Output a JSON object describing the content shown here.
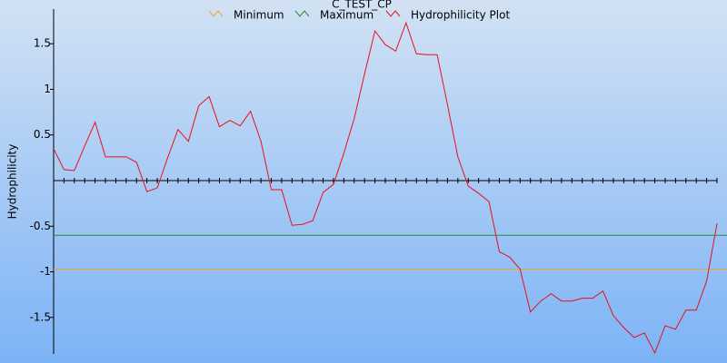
{
  "chart_data": {
    "type": "line",
    "title": "C_TEST_CP",
    "y_label": "Hydrophilicity",
    "x": [
      0,
      1,
      2,
      3,
      4,
      5,
      6,
      7,
      8,
      9,
      10,
      11,
      12,
      13,
      14,
      15,
      16,
      17,
      18,
      19,
      20,
      21,
      22,
      23,
      24,
      25,
      26,
      27,
      28,
      29,
      30,
      31,
      32,
      33,
      34,
      35,
      36,
      37,
      38,
      39,
      40,
      41,
      42,
      43,
      44,
      45,
      46,
      47,
      48,
      49,
      50,
      51,
      52,
      53,
      54,
      55,
      56,
      57,
      58,
      59,
      60,
      61,
      62,
      63,
      64
    ],
    "xlim": [
      0,
      64
    ],
    "ylim": [
      -1.9,
      1.88
    ],
    "yticks": [
      1.5,
      1,
      0.5,
      -0.5,
      -1,
      -1.5
    ],
    "series": [
      {
        "name": "Minimum",
        "color": "#f0a030",
        "value": -0.97
      },
      {
        "name": "Maximum",
        "color": "#20902a",
        "value": -0.6
      },
      {
        "name": "Hydrophilicity Plot",
        "color": "#e8101c",
        "values": [
          0.35,
          0.12,
          0.11,
          0.38,
          0.64,
          0.26,
          0.26,
          0.26,
          0.2,
          -0.12,
          -0.08,
          0.25,
          0.56,
          0.43,
          0.82,
          0.92,
          0.59,
          0.66,
          0.6,
          0.76,
          0.43,
          -0.1,
          -0.1,
          -0.49,
          -0.48,
          -0.44,
          -0.13,
          -0.04,
          0.3,
          0.68,
          1.17,
          1.64,
          1.49,
          1.42,
          1.73,
          1.39,
          1.38,
          1.38,
          0.83,
          0.26,
          -0.06,
          -0.14,
          -0.23,
          -0.78,
          -0.84,
          -0.97,
          -1.44,
          -1.32,
          -1.24,
          -1.32,
          -1.32,
          -1.29,
          -1.29,
          -1.21,
          -1.48,
          -1.61,
          -1.72,
          -1.67,
          -1.89,
          -1.59,
          -1.63,
          -1.42,
          -1.42,
          -1.1,
          -0.47
        ]
      }
    ]
  }
}
